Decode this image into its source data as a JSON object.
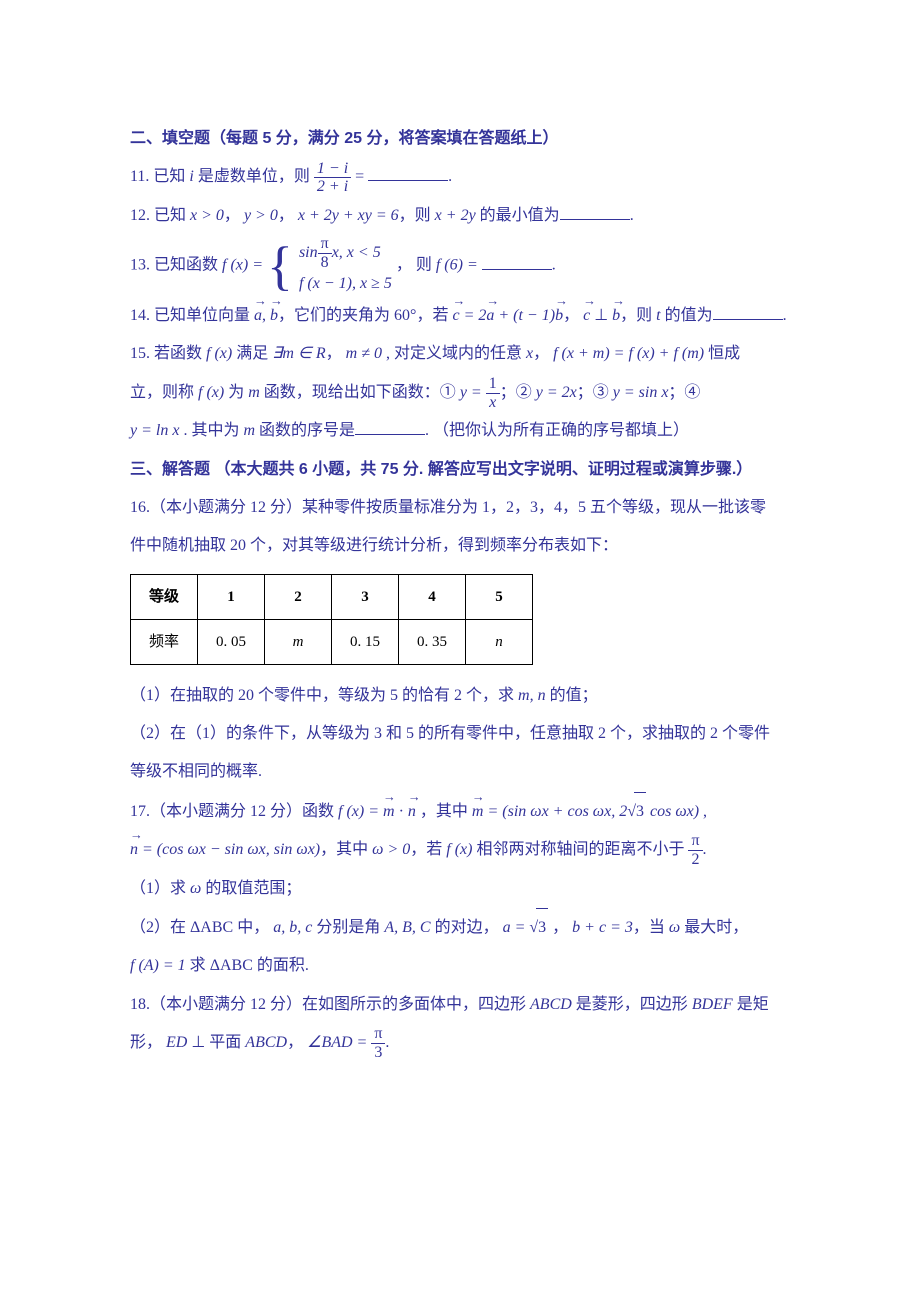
{
  "colors": {
    "text": "#333399",
    "table_text": "#000000",
    "table_border": "#000000",
    "background": "#ffffff"
  },
  "typography": {
    "body_fontsize": 16,
    "line_height": 2.4,
    "font_family": "SimSun",
    "math_family": "Times New Roman"
  },
  "section2": {
    "title": "二、填空题（每题 5 分，满分 25 分，将答案填在答题纸上）",
    "q11": {
      "pre": "11. 已知 ",
      "i": "i",
      "mid": " 是虚数单位，则 ",
      "num": "1 − i",
      "den": "2 + i",
      "eq": " = ",
      "post": "."
    },
    "q12": {
      "pre": "12. 已知 ",
      "c1": "x > 0",
      "s1": "， ",
      "c2": "y > 0",
      "s2": "， ",
      "c3": "x + 2y + xy = 6",
      "mid": "，则 ",
      "expr": "x + 2y",
      "tail": " 的最小值为",
      "post": "."
    },
    "q13": {
      "pre": "13.  已知函数 ",
      "fx": "f (x) = ",
      "row1a": "sin ",
      "row1num": "π",
      "row1den": "8",
      "row1b": " x, x < 5",
      "row2": "f (x − 1), x ≥ 5",
      "mid": " ， 则 ",
      "f6": "f (6) = ",
      "post": "."
    },
    "q14": {
      "pre": "14. 已知单位向量 ",
      "a": "a",
      "b": "b",
      "comma1": "，它们的夹角为 ",
      "ang": "60°",
      "mid1": "，若 ",
      "c": "c",
      "eq": " = 2",
      "plus": " + (t − 1)",
      "comma2": "， ",
      "perp": " ⊥ ",
      "tail": "，则 ",
      "t": "t",
      "tail2": " 的值为",
      "post": "."
    },
    "q15": {
      "l1a": "15. 若函数 ",
      "fx": "f (x)",
      "l1b": " 满足 ",
      "exist": "∃m ∈ R",
      "s1": "， ",
      "mne0": "m ≠ 0",
      "l1c": " , 对定义域内的任意 ",
      "x": "x",
      "s2": "， ",
      "eq": "f (x + m) = f (x) + f (m)",
      "l1d": " 恒成",
      "l2a": "立，则称 ",
      "l2b": " 为 ",
      "m": "m",
      "l2c": " 函数，现给出如下函数：① ",
      "f1": "y = ",
      "f1num": "1",
      "f1den": "x",
      "sep1": "；② ",
      "f2": "y = 2x",
      "sep2": "；③ ",
      "f3": "y = sin x",
      "sep3": "；④",
      "l3a": "y = ln x",
      "l3b": " . 其中为 ",
      "l3c": " 函数的序号是",
      "l3d": ".   （把你认为所有正确的序号都填上）"
    }
  },
  "section3": {
    "title": "三、解答题 （本大题共 6 小题，共 75 分. 解答应写出文字说明、证明过程或演算步骤.）",
    "q16": {
      "l1": "16.（本小题满分 12 分）某种零件按质量标准分为 1，2，3，4，5 五个等级，现从一批该零",
      "l2": "件中随机抽取 20 个，对其等级进行统计分析，得到频率分布表如下：",
      "table": {
        "type": "table",
        "columns": [
          "等级",
          "1",
          "2",
          "3",
          "4",
          "5"
        ],
        "rows": [
          [
            "频率",
            "0. 05",
            "m",
            "0. 15",
            "0. 35",
            "n"
          ]
        ],
        "border_color": "#000000",
        "text_color": "#000000",
        "fontsize": 15
      },
      "p1a": "（1）在抽取的 20 个零件中，等级为 5 的恰有 2 个，求 ",
      "mn": "m, n",
      "p1b": " 的值；",
      "p2a": "（2）在（1）的条件下，从等级为 3 和 5 的所有零件中，任意抽取 2 个，求抽取的 2 个零件",
      "p2b": "等级不相同的概率."
    },
    "q17": {
      "l1a": "17.（本小题满分 12 分）函数 ",
      "fx": "f (x) = ",
      "m": "m",
      "dot": " · ",
      "n": "n",
      "l1b": " ，其中 ",
      "mv": " = (sin ωx + cos ωx, 2",
      "sqrt3": "3",
      "mv2": " cos ωx)",
      "comma": " ,",
      "l2a": " = (cos ωx − sin ωx, sin ωx)",
      "l2b": "，其中 ",
      "wgt": "ω > 0",
      "l2c": "，若 ",
      "l2d": " 相邻两对称轴间的距离不小于 ",
      "pinum": "π",
      "piden": "2",
      "l2e": ".",
      "p1": "（1）求 ",
      "omega": "ω",
      "p1b": " 的取值范围；",
      "p2a": "（2）在 ",
      "tri": "ΔABC",
      "p2b": " 中， ",
      "abc": "a, b, c",
      "p2c": " 分别是角 ",
      "ABC": "A, B, C",
      "p2d": " 的对边， ",
      "aval": "a = ",
      "sqrt3b": "3",
      "p2s": " ， ",
      "bc": "b + c = 3",
      "p2e": "，当 ",
      "p2f": " 最大时，",
      "l3a": "f (A) = 1",
      "l3b": " 求 ",
      "l3c": " 的面积."
    },
    "q18": {
      "l1": "18.（本小题满分 12 分）在如图所示的多面体中，四边形 ",
      "ABCD": "ABCD",
      "l1b": " 是菱形，四边形 ",
      "BDEF": "BDEF",
      "l1c": " 是矩",
      "l2a": "形， ",
      "ED": "ED",
      "perp": " ⊥ ",
      "pl": "平面 ",
      "l2b": "， ",
      "ang": "∠BAD = ",
      "pinum": "π",
      "piden": "3",
      "l2c": "."
    }
  }
}
